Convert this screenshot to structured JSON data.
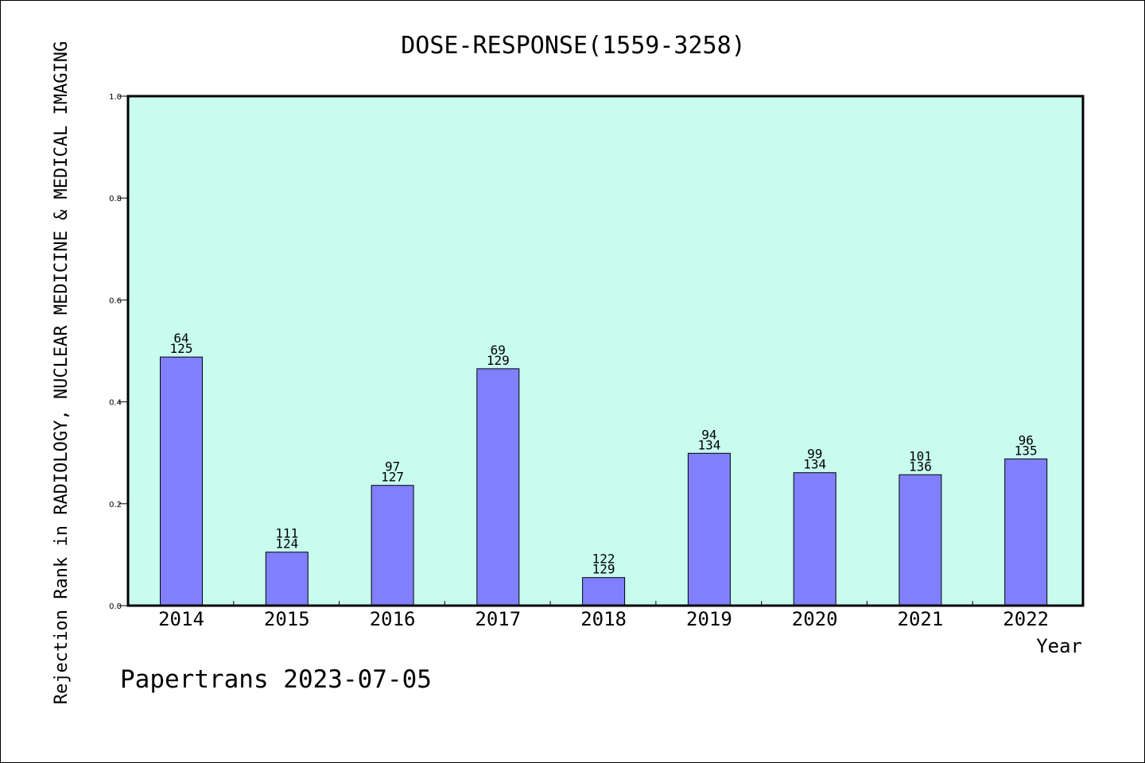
{
  "chart_data": {
    "type": "bar",
    "title": "DOSE-RESPONSE(1559-3258)",
    "xlabel": "Year",
    "ylabel": "Rejection Rank in RADIOLOGY, NUCLEAR MEDICINE & MEDICAL IMAGING",
    "ylim": [
      0,
      1.0
    ],
    "yticks": [
      "0.0",
      "0.2",
      "0.4",
      "0.6",
      "0.8",
      "1.0"
    ],
    "grid": false,
    "categories": [
      "2014",
      "2015",
      "2016",
      "2017",
      "2018",
      "2019",
      "2020",
      "2021",
      "2022"
    ],
    "values": [
      0.488,
      0.105,
      0.236,
      0.465,
      0.055,
      0.299,
      0.261,
      0.257,
      0.288
    ],
    "rank_labels": [
      "64",
      "111",
      "97",
      "69",
      "122",
      "94",
      "99",
      "101",
      "96"
    ],
    "total_labels": [
      "125",
      "124",
      "127",
      "129",
      "129",
      "134",
      "134",
      "136",
      "135"
    ],
    "colors": {
      "bar_fill": "#8080ff",
      "plot_bg": "#c8fcef",
      "axis": "#000000"
    }
  },
  "footer": {
    "text": "Papertrans 2023-07-05"
  }
}
